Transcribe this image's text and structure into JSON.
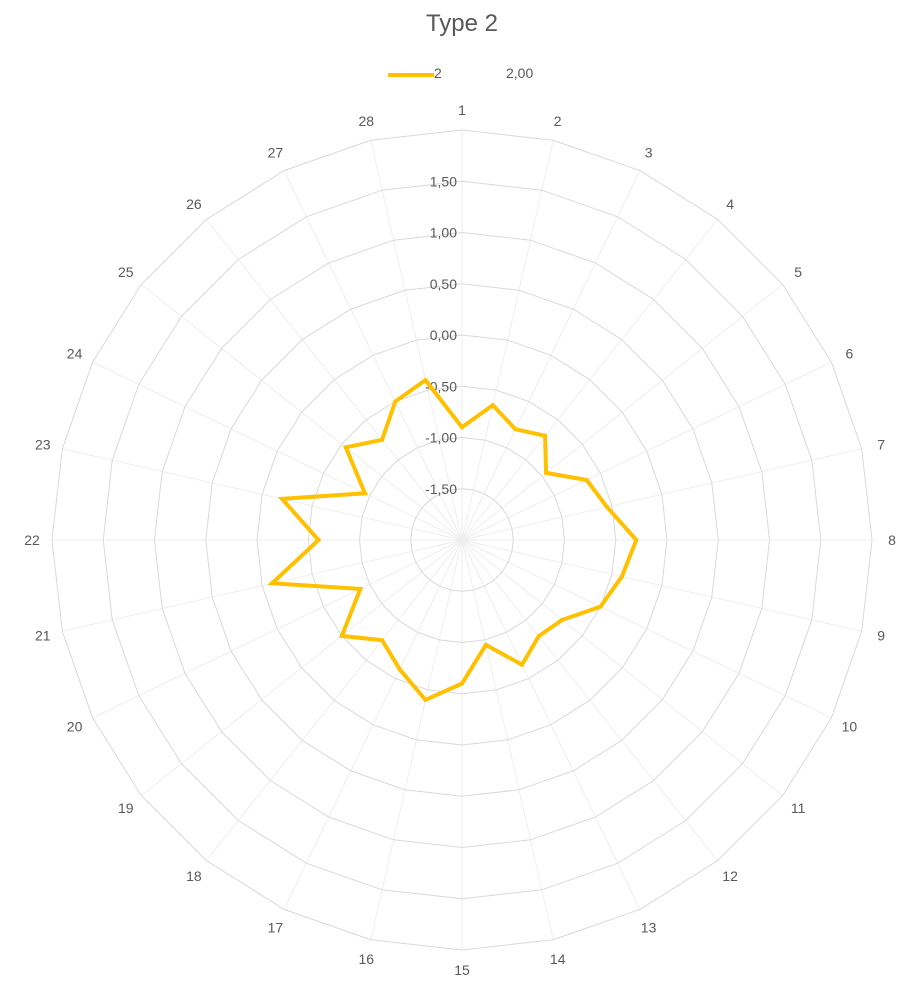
{
  "chart_data": {
    "type": "radar",
    "title": "Type 2",
    "legend": {
      "position": "top",
      "extra_label": "2,00"
    },
    "categories": [
      "1",
      "2",
      "3",
      "4",
      "5",
      "6",
      "7",
      "8",
      "9",
      "10",
      "11",
      "12",
      "13",
      "14",
      "15",
      "16",
      "17",
      "18",
      "19",
      "20",
      "21",
      "22",
      "23",
      "24",
      "25",
      "26",
      "27",
      "28"
    ],
    "r_ticks": [
      "-1,50",
      "-1,00",
      "-0,50",
      "0,00",
      "0,50",
      "1,00",
      "1,50"
    ],
    "rlim": [
      -2.0,
      2.0
    ],
    "grid": true,
    "series": [
      {
        "name": "2",
        "color": "#FFC000",
        "values": [
          -0.9,
          -0.65,
          -0.8,
          -0.7,
          -0.95,
          -0.65,
          -0.55,
          -0.3,
          -0.4,
          -0.5,
          -0.75,
          -0.8,
          -0.65,
          -0.95,
          -0.6,
          -0.4,
          -0.6,
          -0.75,
          -0.5,
          -0.9,
          -0.1,
          -0.6,
          -0.2,
          -0.95,
          -0.55,
          -0.75,
          -0.5,
          -0.4
        ]
      }
    ]
  }
}
